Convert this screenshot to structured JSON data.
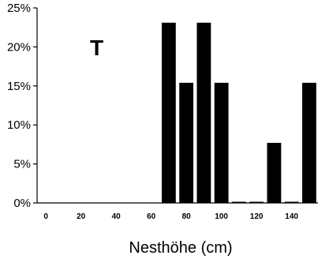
{
  "chart_data": {
    "type": "bar",
    "panel_label": "T",
    "xlabel": "Nesthöhe (cm)",
    "ylabel": "",
    "x_ticks": [
      0,
      20,
      40,
      60,
      80,
      100,
      120,
      140
    ],
    "y_ticks": [
      "0%",
      "5%",
      "10%",
      "15%",
      "20%",
      "25%"
    ],
    "y_tick_values": [
      0,
      5,
      10,
      15,
      20,
      25
    ],
    "xlim": [
      -5,
      155
    ],
    "ylim": [
      0,
      25
    ],
    "bar_width": 8,
    "x": [
      70,
      80,
      90,
      100,
      110,
      120,
      130,
      140,
      150
    ],
    "values": [
      23.1,
      15.4,
      23.1,
      15.4,
      0,
      0,
      7.7,
      0,
      15.4
    ],
    "bar_color": "#000000",
    "grid": false
  }
}
